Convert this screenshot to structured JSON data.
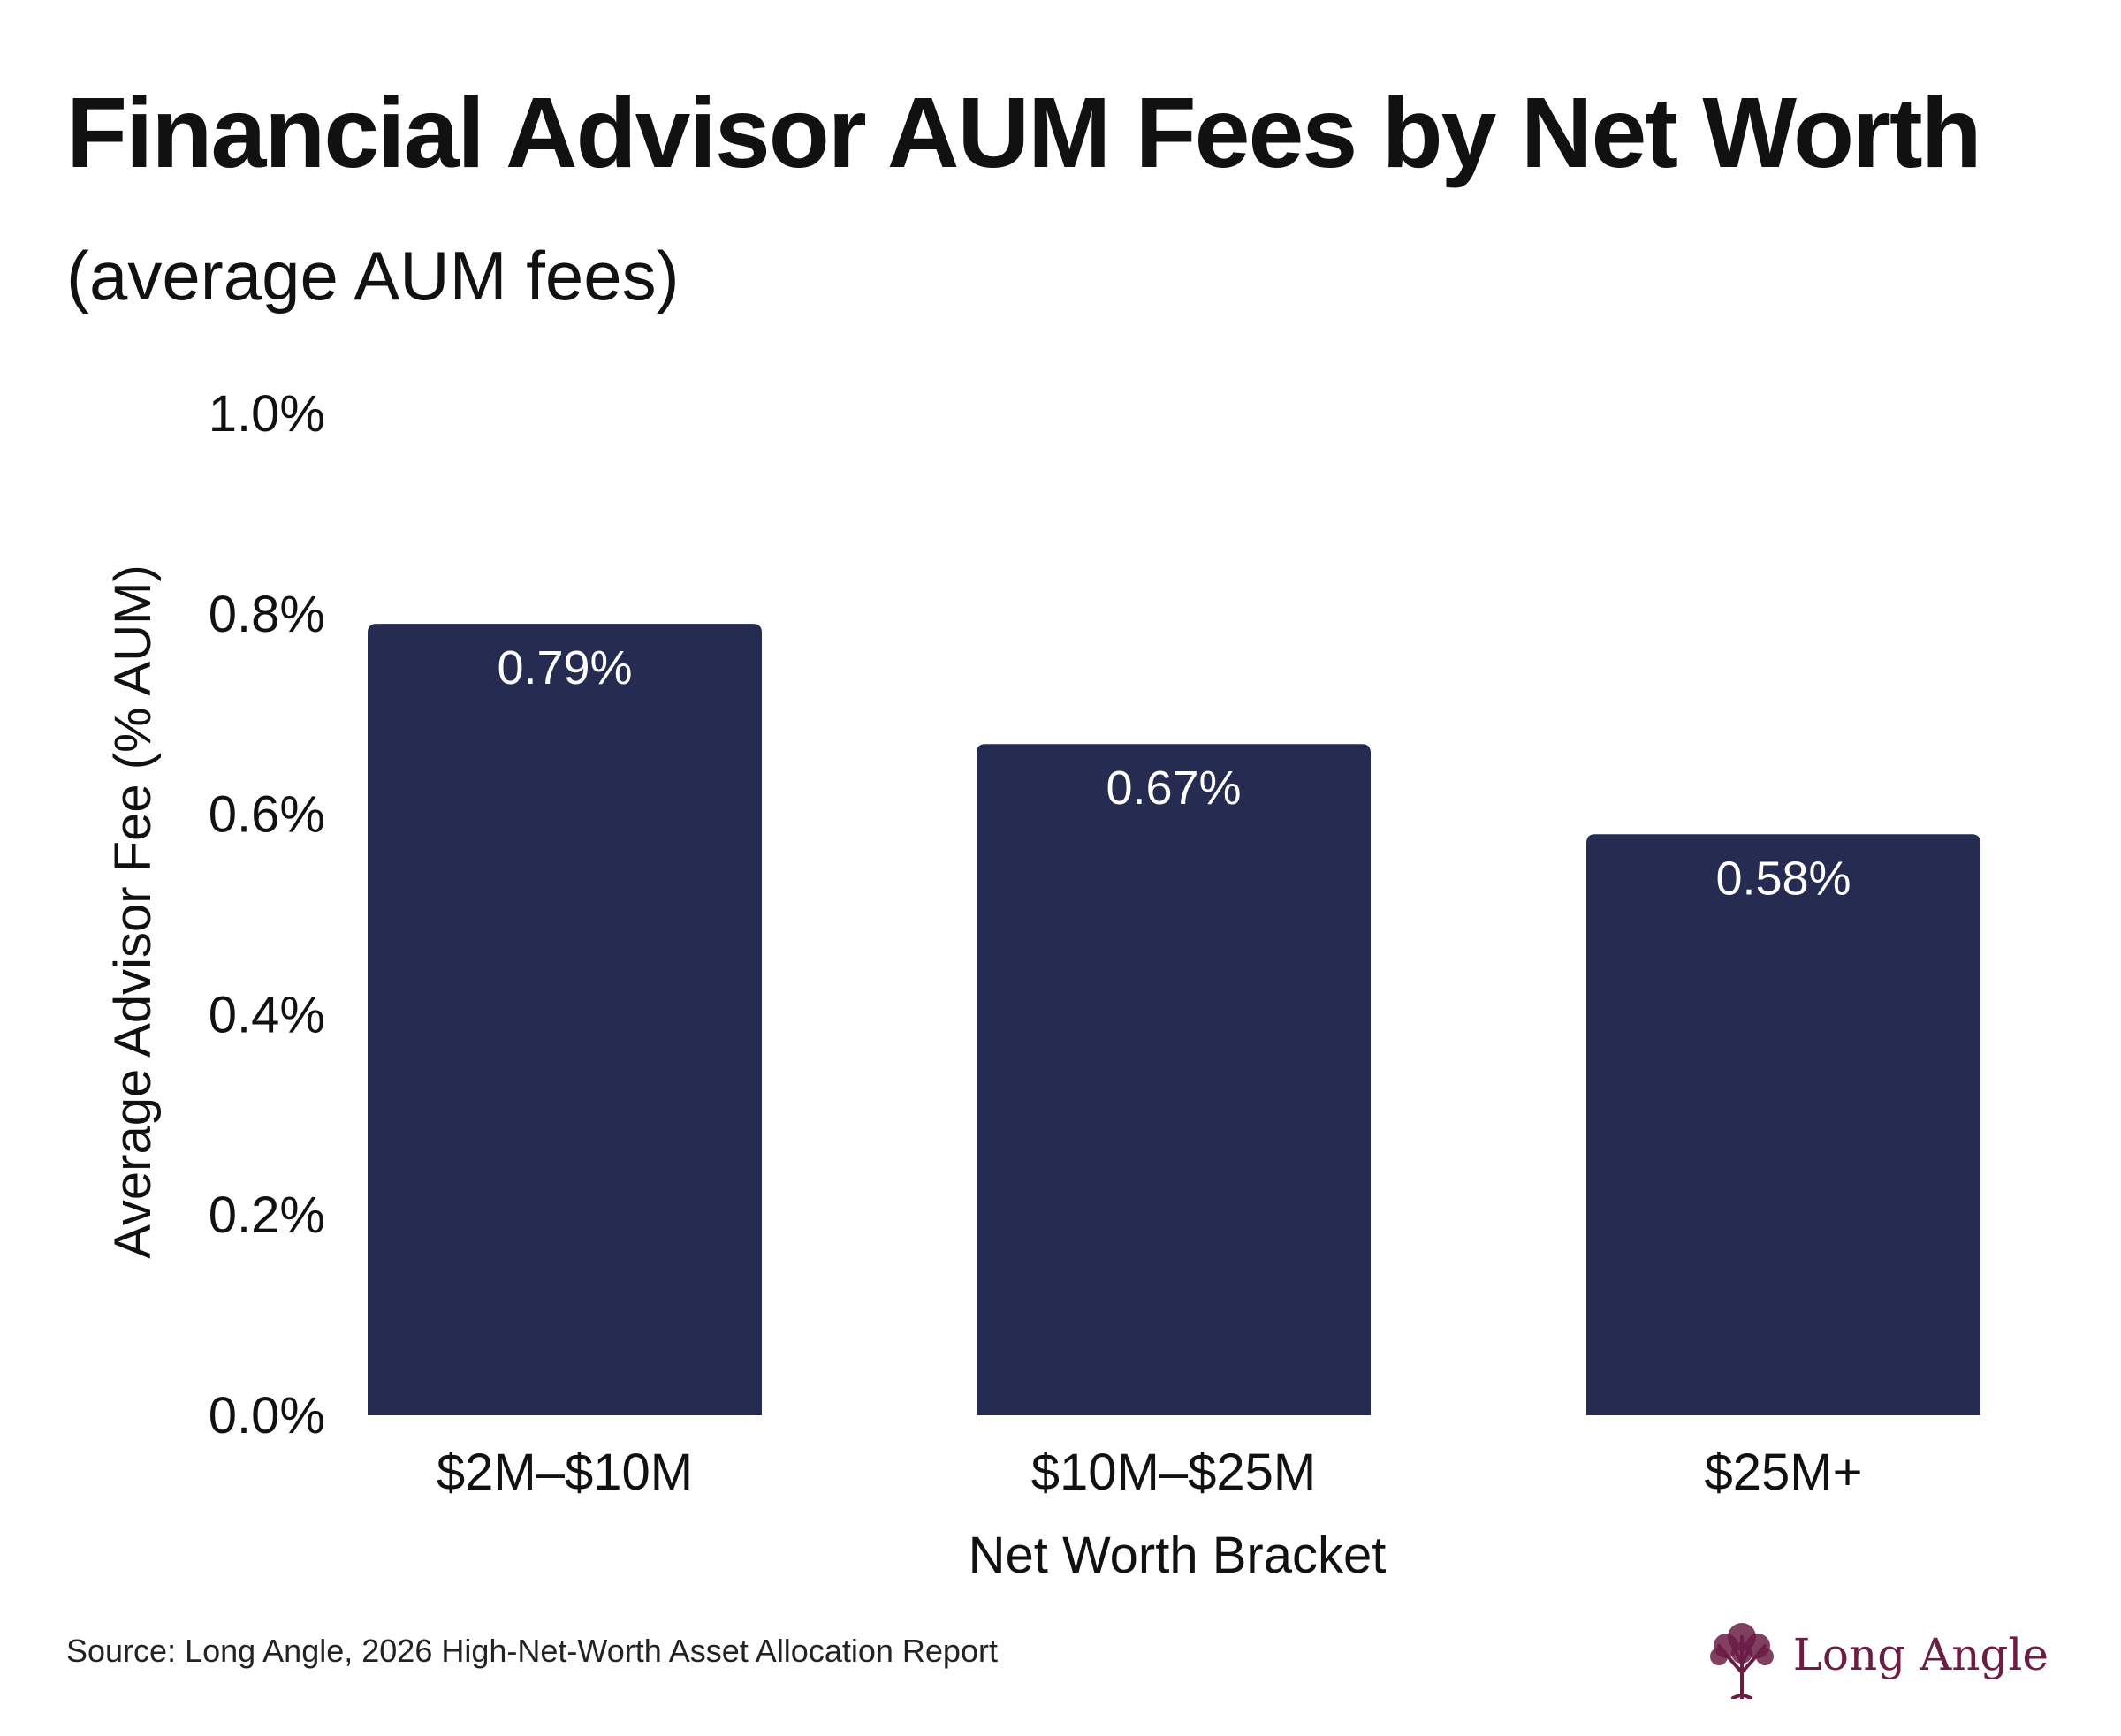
{
  "header": {
    "title": "Financial Advisor AUM Fees by Net Worth",
    "subtitle": "(average AUM fees)"
  },
  "chart_data": {
    "type": "bar",
    "categories": [
      "$2M–$10M",
      "$10M–$25M",
      "$25M+"
    ],
    "values": [
      0.79,
      0.67,
      0.58
    ],
    "data_labels": [
      "0.79%",
      "0.67%",
      "0.58%"
    ],
    "xlabel": "Net Worth Bracket",
    "ylabel": "Average Advisor Fee (% AUM)",
    "ylim": [
      0,
      1.0
    ],
    "yticks": [
      0.0,
      0.2,
      0.4,
      0.6,
      0.8,
      1.0
    ],
    "ytick_labels": [
      "0.0%",
      "0.2%",
      "0.4%",
      "0.6%",
      "0.8%",
      "1.0%"
    ],
    "grid": false,
    "bar_color": "#262b52",
    "label_color": "#ffffff"
  },
  "footer": {
    "source": "Source: Long Angle, 2026 High-Net-Worth Asset Allocation Report",
    "brand_name": "Long Angle",
    "brand_icon": "tree-icon",
    "brand_color": "#6b1d45"
  }
}
